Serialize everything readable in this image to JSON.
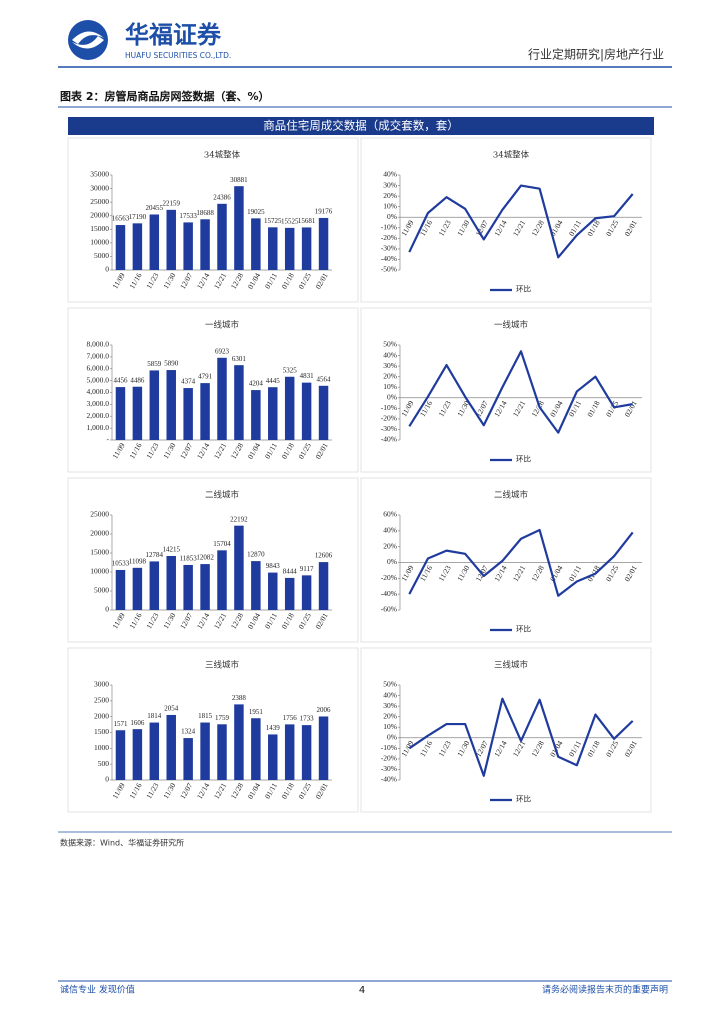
{
  "header": {
    "company": "华福证券",
    "company_en": "HUAFU SECURITIES CO.,LTD.",
    "report": "行业定期研究|房地产行业"
  },
  "figure": {
    "caption": "图表 2：房管局商品房网签数据（套、%）",
    "banner": "商品住宅周成交数据（成交套数，套）",
    "source": "数据来源：Wind、华福证券研究所"
  },
  "footer": {
    "left": "诚信专业  发现价值",
    "page": "4",
    "right": "请务必阅读报告末页的重要声明"
  },
  "chart_data": [
    {
      "type": "bar",
      "title": "34城整体",
      "categories": [
        "11/09",
        "11/16",
        "11/23",
        "11/30",
        "12/07",
        "12/14",
        "12/21",
        "12/28",
        "01/04",
        "01/11",
        "01/18",
        "01/25",
        "02/01"
      ],
      "values": [
        16563,
        17190,
        20455,
        22159,
        17533,
        18688,
        24386,
        30881,
        19025,
        15725,
        15525,
        15681,
        19176
      ],
      "color": "#1f3b9e",
      "ylim": [
        0,
        35000
      ],
      "yticks": [
        0,
        5000,
        10000,
        15000,
        20000,
        25000,
        30000,
        35000
      ]
    },
    {
      "type": "line",
      "title": "34城整体",
      "categories": [
        "11/09",
        "11/16",
        "11/23",
        "11/30",
        "12/07",
        "12/14",
        "12/21",
        "12/28",
        "01/04",
        "01/11",
        "01/18",
        "01/25",
        "02/01"
      ],
      "series": [
        {
          "name": "环比",
          "color": "#1f3b9e",
          "values": [
            -33,
            4,
            19,
            8,
            -21,
            7,
            30,
            27,
            -38,
            -17,
            -1,
            1,
            22
          ]
        }
      ],
      "ylim": [
        -50,
        40
      ],
      "yticks": [
        {
          "value": -50,
          "label": "-50%"
        },
        {
          "value": -40,
          "label": "-40%"
        },
        {
          "value": -30,
          "label": "-30%"
        },
        {
          "value": -20,
          "label": "-20%"
        },
        {
          "value": -10,
          "label": "-10%"
        },
        {
          "value": 0,
          "label": "0%"
        },
        {
          "value": 10,
          "label": "10%"
        },
        {
          "value": 20,
          "label": "20%"
        },
        {
          "value": 30,
          "label": "30%"
        },
        {
          "value": 40,
          "label": "40%"
        }
      ]
    },
    {
      "type": "bar",
      "title": "一线城市",
      "categories": [
        "11/09",
        "11/16",
        "11/23",
        "11/30",
        "12/07",
        "12/14",
        "12/21",
        "12/28",
        "01/04",
        "01/11",
        "01/18",
        "01/25",
        "02/01"
      ],
      "values": [
        4456,
        4486,
        5859,
        5890,
        4374,
        4791,
        6923,
        6301,
        4204,
        4445,
        5325,
        4831,
        4564
      ],
      "color": "#1f3b9e",
      "ylim": [
        0,
        8000
      ],
      "yticks": [
        {
          "value": 0,
          "label": "-"
        },
        {
          "value": 1000,
          "label": "1,000.0"
        },
        {
          "value": 2000,
          "label": "2,000.0"
        },
        {
          "value": 3000,
          "label": "3,000.0"
        },
        {
          "value": 4000,
          "label": "4,000.0"
        },
        {
          "value": 5000,
          "label": "5,000.0"
        },
        {
          "value": 6000,
          "label": "6,000.0"
        },
        {
          "value": 7000,
          "label": "7,000.0"
        },
        {
          "value": 8000,
          "label": "8,000.0"
        }
      ]
    },
    {
      "type": "line",
      "title": "一线城市",
      "categories": [
        "11/09",
        "11/16",
        "11/23",
        "11/30",
        "12/07",
        "12/14",
        "12/21",
        "12/28",
        "01/04",
        "01/11",
        "01/18",
        "01/25",
        "02/01"
      ],
      "series": [
        {
          "name": "环比",
          "color": "#1f3b9e",
          "values": [
            -27,
            1,
            31,
            1,
            -26,
            10,
            44,
            -9,
            -33,
            6,
            20,
            -9,
            -6
          ]
        }
      ],
      "ylim": [
        -40,
        50
      ],
      "yticks": [
        {
          "value": -40,
          "label": "-40%"
        },
        {
          "value": -30,
          "label": "-30%"
        },
        {
          "value": -20,
          "label": "-20%"
        },
        {
          "value": -10,
          "label": "-10%"
        },
        {
          "value": 0,
          "label": "0%"
        },
        {
          "value": 10,
          "label": "10%"
        },
        {
          "value": 20,
          "label": "20%"
        },
        {
          "value": 30,
          "label": "30%"
        },
        {
          "value": 40,
          "label": "40%"
        },
        {
          "value": 50,
          "label": "50%"
        }
      ]
    },
    {
      "type": "bar",
      "title": "二线城市",
      "categories": [
        "11/09",
        "11/16",
        "11/23",
        "11/30",
        "12/07",
        "12/14",
        "12/21",
        "12/28",
        "01/04",
        "01/11",
        "01/18",
        "01/25",
        "02/01"
      ],
      "values": [
        10533,
        11098,
        12784,
        14215,
        11853,
        12082,
        15704,
        22192,
        12870,
        9843,
        8444,
        9117,
        12606
      ],
      "color": "#1f3b9e",
      "ylim": [
        0,
        25000
      ],
      "yticks": [
        0,
        5000,
        10000,
        15000,
        20000,
        25000
      ]
    },
    {
      "type": "line",
      "title": "二线城市",
      "categories": [
        "11/09",
        "11/16",
        "11/23",
        "11/30",
        "12/07",
        "12/14",
        "12/21",
        "12/28",
        "01/04",
        "01/11",
        "01/18",
        "01/25",
        "02/01"
      ],
      "series": [
        {
          "name": "环比",
          "color": "#1f3b9e",
          "values": [
            -40,
            5,
            15,
            11,
            -17,
            2,
            30,
            41,
            -42,
            -24,
            -14,
            8,
            38
          ]
        }
      ],
      "ylim": [
        -60,
        60
      ],
      "yticks": [
        {
          "value": -60,
          "label": "-60%"
        },
        {
          "value": -40,
          "label": "-40%"
        },
        {
          "value": -20,
          "label": "-20%"
        },
        {
          "value": 0,
          "label": "0%"
        },
        {
          "value": 20,
          "label": "20%"
        },
        {
          "value": 40,
          "label": "40%"
        },
        {
          "value": 60,
          "label": "60%"
        }
      ]
    },
    {
      "type": "bar",
      "title": "三线城市",
      "categories": [
        "11/09",
        "11/16",
        "11/23",
        "11/30",
        "12/07",
        "12/14",
        "12/21",
        "12/28",
        "01/04",
        "01/11",
        "01/18",
        "01/25",
        "02/01"
      ],
      "values": [
        1571,
        1606,
        1814,
        2054,
        1324,
        1815,
        1759,
        2388,
        1951,
        1439,
        1756,
        1733,
        2006
      ],
      "color": "#1f3b9e",
      "ylim": [
        0,
        3000
      ],
      "yticks": [
        0,
        500,
        1000,
        1500,
        2000,
        2500,
        3000
      ]
    },
    {
      "type": "line",
      "title": "三线城市",
      "categories": [
        "11/09",
        "11/16",
        "11/23",
        "11/30",
        "12/07",
        "12/14",
        "12/21",
        "12/28",
        "01/04",
        "01/11",
        "01/18",
        "01/25",
        "02/01"
      ],
      "series": [
        {
          "name": "环比",
          "color": "#1f3b9e",
          "values": [
            -10,
            2,
            13,
            13,
            -36,
            37,
            -3,
            36,
            -18,
            -26,
            22,
            -1,
            16
          ]
        }
      ],
      "ylim": [
        -40,
        50
      ],
      "yticks": [
        {
          "value": -40,
          "label": "-40%"
        },
        {
          "value": -30,
          "label": "-30%"
        },
        {
          "value": -20,
          "label": "-20%"
        },
        {
          "value": -10,
          "label": "-10%"
        },
        {
          "value": 0,
          "label": "0%"
        },
        {
          "value": 10,
          "label": "10%"
        },
        {
          "value": 20,
          "label": "20%"
        },
        {
          "value": 30,
          "label": "30%"
        },
        {
          "value": 40,
          "label": "40%"
        },
        {
          "value": 50,
          "label": "50%"
        }
      ]
    }
  ]
}
